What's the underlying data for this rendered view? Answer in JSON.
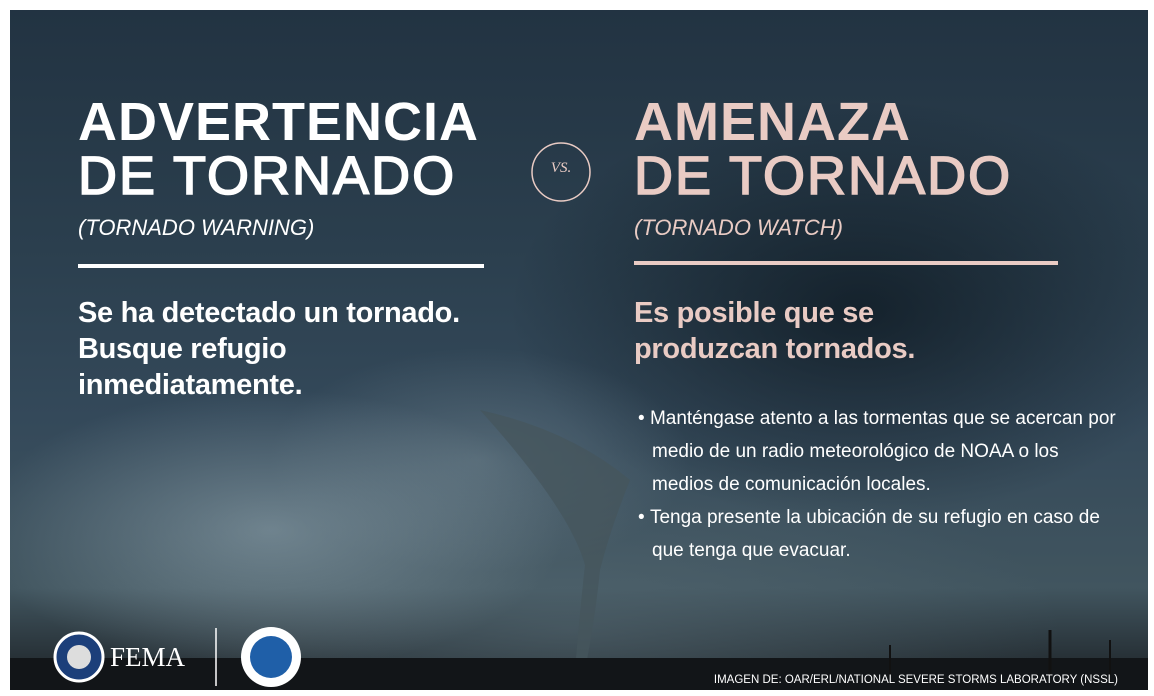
{
  "left": {
    "title": "ADVERTENCIA",
    "subtitle": "DE TORNADO",
    "english": "(TORNADO WARNING)",
    "description": "Se ha detectado un tornado. Busque refugio inmediatamente."
  },
  "vs": "VS.",
  "right": {
    "title": "AMENAZA",
    "subtitle": "DE TORNADO",
    "english": "(TORNADO WATCH)",
    "description": "Es posible que se produzcan tornados.",
    "bullets": [
      "Manténgase atento a las tormentas que se acercan por medio de un radio meteorológico de NOAA o los medios de comunicación locales.",
      "Tenga presente la ubicación de su refugio en caso de que tenga que evacuar."
    ]
  },
  "footer": {
    "logo": "FEMA",
    "credit": "IMAGEN DE: OAR/ERL/NATIONAL SEVERE STORMS LABORATORY (NSSL)"
  }
}
